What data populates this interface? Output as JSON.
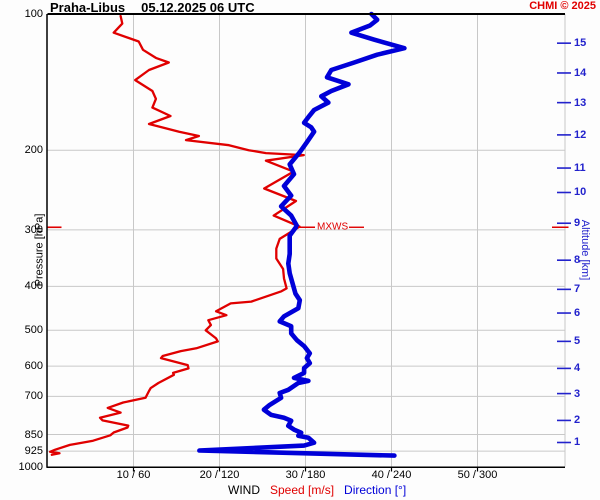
{
  "header": {
    "station": "Praha-Libus",
    "datetime": "05.12.2025 06 UTC",
    "copyright": "CHMI © 2025"
  },
  "colors": {
    "speed": "#e00000",
    "direction": "#0000d8",
    "altitude_axis": "#2222cc",
    "grid": "#c8c8c8",
    "frame": "#000000",
    "copyright": "#e00000"
  },
  "chart_data": {
    "type": "line",
    "title": "Praha-Libus 05.12.2025 06 UTC",
    "x_axis": {
      "label_wind": "WIND",
      "label_speed": "Speed [m/s]",
      "label_direction": "Direction [°]",
      "ticks": [
        {
          "label": "10 / 60",
          "speed": 10
        },
        {
          "label": "20 / 120",
          "speed": 20
        },
        {
          "label": "30 / 180",
          "speed": 30
        },
        {
          "label": "40 / 240",
          "speed": 40
        },
        {
          "label": "50 / 300",
          "speed": 50
        }
      ],
      "speed_range_mps": [
        0,
        60.5
      ],
      "direction_range_deg": [
        0,
        363
      ]
    },
    "y_left_axis": {
      "label": "Pressure [hPa]",
      "scale": "log",
      "range": [
        100,
        1000
      ],
      "ticks": [
        100,
        200,
        300,
        400,
        500,
        600,
        700,
        850,
        925,
        1000
      ]
    },
    "y_right_axis": {
      "label": "Altitude [km]",
      "ticks": [
        {
          "km": 1,
          "p": 885
        },
        {
          "km": 2,
          "p": 791
        },
        {
          "km": 3,
          "p": 690
        },
        {
          "km": 4,
          "p": 607
        },
        {
          "km": 5,
          "p": 529
        },
        {
          "km": 6,
          "p": 458
        },
        {
          "km": 7,
          "p": 406
        },
        {
          "km": 8,
          "p": 350
        },
        {
          "km": 9,
          "p": 290
        },
        {
          "km": 10,
          "p": 248
        },
        {
          "km": 11,
          "p": 219
        },
        {
          "km": 12,
          "p": 185
        },
        {
          "km": 13,
          "p": 157
        },
        {
          "km": 14,
          "p": 135
        },
        {
          "km": 15,
          "p": 116
        }
      ]
    },
    "annotations": [
      {
        "text": "MXWS",
        "p": 296,
        "color": "#e00000"
      }
    ],
    "series": [
      {
        "name": "Speed [m/s]",
        "color": "#e00000",
        "unit": "m/s",
        "x_mapping": "speed",
        "points": [
          [
            101,
            8.5
          ],
          [
            105,
            8.7
          ],
          [
            110,
            7.7
          ],
          [
            115,
            10.6
          ],
          [
            120,
            11.1
          ],
          [
            125,
            12.6
          ],
          [
            128,
            14.1
          ],
          [
            133,
            11.8
          ],
          [
            140,
            10.2
          ],
          [
            148,
            12.2
          ],
          [
            154,
            12.6
          ],
          [
            161,
            12.2
          ],
          [
            168,
            14.3
          ],
          [
            175,
            11.8
          ],
          [
            182,
            15.3
          ],
          [
            186,
            17.6
          ],
          [
            190,
            16.1
          ],
          [
            195,
            21.1
          ],
          [
            200,
            23.4
          ],
          [
            203,
            25.4
          ],
          [
            205,
            29.8
          ],
          [
            211,
            25.4
          ],
          [
            223,
            28.6
          ],
          [
            243,
            25.2
          ],
          [
            259,
            28.9
          ],
          [
            279,
            26.3
          ],
          [
            295,
            29.3
          ],
          [
            314,
            27.0
          ],
          [
            330,
            26.6
          ],
          [
            347,
            26.6
          ],
          [
            366,
            27.4
          ],
          [
            384,
            27.5
          ],
          [
            404,
            27.8
          ],
          [
            410,
            27.2
          ],
          [
            432,
            23.7
          ],
          [
            436,
            21.3
          ],
          [
            454,
            19.6
          ],
          [
            463,
            20.8
          ],
          [
            475,
            18.7
          ],
          [
            487,
            19.0
          ],
          [
            500,
            18.4
          ],
          [
            521,
            19.6
          ],
          [
            529,
            19.8
          ],
          [
            548,
            17.3
          ],
          [
            556,
            15.5
          ],
          [
            570,
            13.4
          ],
          [
            576,
            13.2
          ],
          [
            597,
            16.3
          ],
          [
            607,
            16.4
          ],
          [
            621,
            14.6
          ],
          [
            627,
            14.7
          ],
          [
            654,
            12.9
          ],
          [
            671,
            12.0
          ],
          [
            681,
            11.8
          ],
          [
            705,
            11.4
          ],
          [
            722,
            8.8
          ],
          [
            742,
            7.0
          ],
          [
            760,
            8.5
          ],
          [
            780,
            6.1
          ],
          [
            791,
            6.4
          ],
          [
            812,
            9.4
          ],
          [
            820,
            9.3
          ],
          [
            841,
            7.7
          ],
          [
            853,
            7.3
          ],
          [
            877,
            5.3
          ],
          [
            892,
            3.2
          ],
          [
            896,
            2.6
          ],
          [
            918,
            0.9
          ],
          [
            928,
            0.3
          ],
          [
            935,
            1.4
          ],
          [
            942,
            0.5
          ]
        ]
      },
      {
        "name": "Direction [°]",
        "color": "#0000d8",
        "unit": "deg",
        "x_mapping": "direction",
        "points": [
          [
            100,
            226
          ],
          [
            103,
            230
          ],
          [
            106,
            225
          ],
          [
            110,
            212
          ],
          [
            114,
            228
          ],
          [
            119,
            249
          ],
          [
            123,
            230
          ],
          [
            128,
            214
          ],
          [
            133,
            198
          ],
          [
            138,
            195
          ],
          [
            143,
            210
          ],
          [
            148,
            198
          ],
          [
            152,
            191
          ],
          [
            157,
            196
          ],
          [
            163,
            186
          ],
          [
            169,
            182
          ],
          [
            174,
            179
          ],
          [
            178,
            184
          ],
          [
            182,
            186
          ],
          [
            192,
            181
          ],
          [
            202,
            176
          ],
          [
            215,
            169
          ],
          [
            226,
            172
          ],
          [
            240,
            165
          ],
          [
            252,
            170
          ],
          [
            266,
            163
          ],
          [
            279,
            170
          ],
          [
            294,
            174
          ],
          [
            309,
            169
          ],
          [
            322,
            169
          ],
          [
            339,
            169
          ],
          [
            356,
            168
          ],
          [
            374,
            169
          ],
          [
            394,
            171
          ],
          [
            415,
            173
          ],
          [
            429,
            176
          ],
          [
            447,
            175
          ],
          [
            466,
            165
          ],
          [
            478,
            162
          ],
          [
            490,
            170
          ],
          [
            508,
            170
          ],
          [
            526,
            174
          ],
          [
            542,
            179
          ],
          [
            562,
            183
          ],
          [
            576,
            181
          ],
          [
            591,
            183
          ],
          [
            606,
            179
          ],
          [
            621,
            179
          ],
          [
            637,
            172
          ],
          [
            647,
            182
          ],
          [
            654,
            175
          ],
          [
            677,
            168
          ],
          [
            688,
            162
          ],
          [
            705,
            163
          ],
          [
            731,
            155
          ],
          [
            749,
            151
          ],
          [
            769,
            156
          ],
          [
            780,
            165
          ],
          [
            792,
            170
          ],
          [
            813,
            168
          ],
          [
            829,
            172
          ],
          [
            842,
            177
          ],
          [
            855,
            175
          ],
          [
            864,
            182
          ],
          [
            886,
            186
          ],
          [
            899,
            179
          ],
          [
            922,
            106
          ],
          [
            946,
            242
          ]
        ]
      }
    ]
  }
}
